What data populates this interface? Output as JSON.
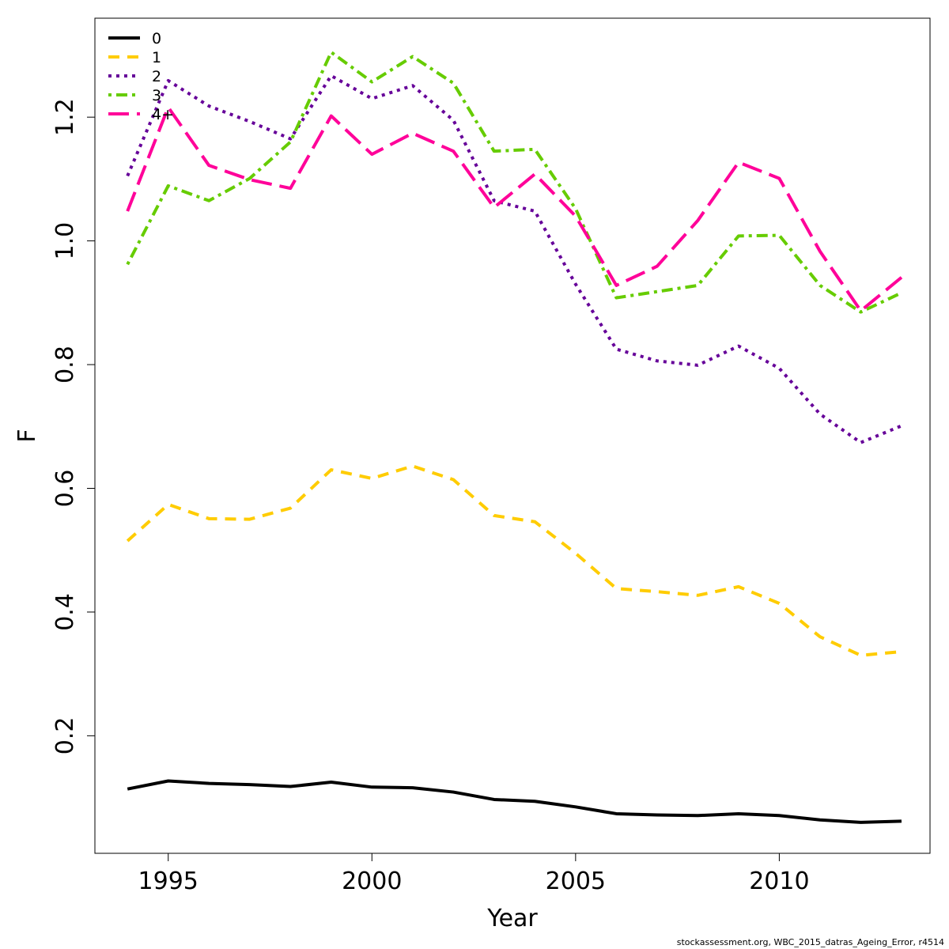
{
  "chart_data": {
    "type": "line",
    "xlabel": "Year",
    "ylabel": "F",
    "xlim": [
      1993.2,
      2013.7
    ],
    "ylim": [
      0.01,
      1.36
    ],
    "xticks": [
      1995,
      2000,
      2005,
      2010
    ],
    "yticks": [
      0.2,
      0.4,
      0.6,
      0.8,
      1.0,
      1.2
    ],
    "xtick_labels": [
      "1995",
      "2000",
      "2005",
      "2010"
    ],
    "ytick_labels": [
      "0.2",
      "0.4",
      "0.6",
      "0.8",
      "1.0",
      "1.2"
    ],
    "grid": false,
    "legend": "top-left",
    "x": [
      1994,
      1995,
      1996,
      1997,
      1998,
      1999,
      2000,
      2001,
      2002,
      2003,
      2004,
      2005,
      2006,
      2007,
      2008,
      2009,
      2010,
      2011,
      2012,
      2013
    ],
    "series": [
      {
        "name": "0",
        "color": "#000000",
        "dash": "solid",
        "values": [
          0.114,
          0.127,
          0.123,
          0.121,
          0.118,
          0.125,
          0.117,
          0.116,
          0.109,
          0.097,
          0.094,
          0.085,
          0.074,
          0.072,
          0.071,
          0.074,
          0.071,
          0.064,
          0.06,
          0.062
        ]
      },
      {
        "name": "1",
        "color": "#FFCC00",
        "dash": "dashed",
        "values": [
          0.515,
          0.574,
          0.551,
          0.55,
          0.568,
          0.63,
          0.616,
          0.636,
          0.614,
          0.556,
          0.546,
          0.495,
          0.438,
          0.433,
          0.427,
          0.441,
          0.414,
          0.36,
          0.33,
          0.336
        ]
      },
      {
        "name": "2",
        "color": "#660099",
        "dash": "dotted",
        "values": [
          1.105,
          1.259,
          1.218,
          1.193,
          1.165,
          1.267,
          1.23,
          1.251,
          1.195,
          1.065,
          1.048,
          0.93,
          0.825,
          0.806,
          0.799,
          0.83,
          0.794,
          0.72,
          0.674,
          0.701
        ]
      },
      {
        "name": "3",
        "color": "#66CC00",
        "dash": "dotdash",
        "values": [
          0.962,
          1.089,
          1.065,
          1.101,
          1.16,
          1.305,
          1.257,
          1.298,
          1.255,
          1.145,
          1.148,
          1.052,
          0.908,
          0.918,
          0.928,
          1.008,
          1.009,
          0.928,
          0.885,
          0.916
        ]
      },
      {
        "name": "4+",
        "color": "#FF0099",
        "dash": "longdash",
        "values": [
          1.048,
          1.216,
          1.122,
          1.099,
          1.085,
          1.202,
          1.14,
          1.174,
          1.145,
          1.054,
          1.108,
          1.04,
          0.928,
          0.959,
          1.033,
          1.127,
          1.101,
          0.983,
          0.887,
          0.941
        ]
      }
    ]
  },
  "footer": {
    "text": "stockassessment.org, WBC_2015_datras_Ageing_Error, r4514"
  }
}
